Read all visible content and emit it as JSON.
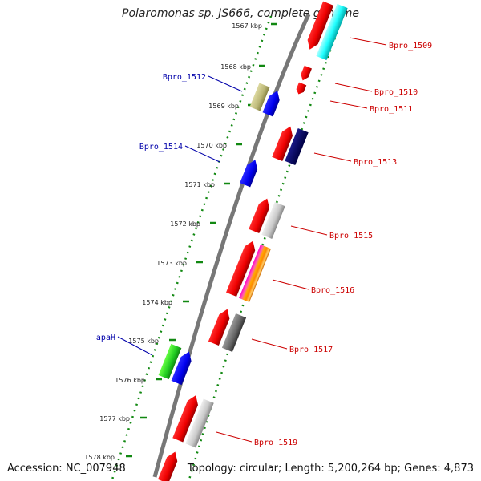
{
  "title": "Polaromonas sp. JS666, complete genome",
  "footer": {
    "accession": "Accession: NC_007948",
    "summary": "Topology: circular; Length: 5,200,264 bp; Genes: 4,873"
  },
  "colors": {
    "forward_label": "#cc0000",
    "reverse_label": "#0000aa",
    "backbone": "#777777",
    "tick": "#118811"
  },
  "kbp_ticks": [
    "1567 kbp",
    "1568 kbp",
    "1569 kbp",
    "1570 kbp",
    "1571 kbp",
    "1572 kbp",
    "1573 kbp",
    "1574 kbp",
    "1575 kbp",
    "1576 kbp",
    "1577 kbp",
    "1578 kbp"
  ],
  "labels": [
    {
      "text": "Bpro_1509",
      "strand": "forward"
    },
    {
      "text": "Bpro_1510",
      "strand": "forward"
    },
    {
      "text": "Bpro_1511",
      "strand": "forward"
    },
    {
      "text": "Bpro_1512",
      "strand": "reverse"
    },
    {
      "text": "Bpro_1513",
      "strand": "forward"
    },
    {
      "text": "Bpro_1514",
      "strand": "reverse"
    },
    {
      "text": "Bpro_1515",
      "strand": "forward"
    },
    {
      "text": "Bpro_1516",
      "strand": "forward"
    },
    {
      "text": "apaH",
      "strand": "reverse"
    },
    {
      "text": "Bpro_1517",
      "strand": "forward"
    },
    {
      "text": "Bpro_1519",
      "strand": "forward"
    }
  ]
}
